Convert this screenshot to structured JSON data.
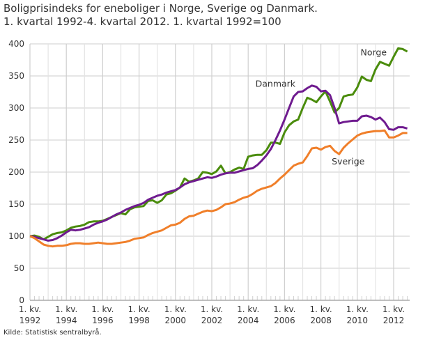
{
  "chart_data": {
    "type": "line",
    "title": "Boligprisindeks for eneboliger i Norge, Sverige og Danmark.",
    "subtitle": "1. kvartal 1992-4. kvartal 2012. 1. kvartal 1992=100",
    "source": "Kilde: Statistisk sentralbyrå.",
    "xlabel": "",
    "ylabel": "",
    "x_start": "1992 Q1",
    "x_end": "2012 Q4",
    "x_frequency": "quarterly",
    "ylim": [
      0,
      400
    ],
    "yticks": [
      0,
      50,
      100,
      150,
      200,
      250,
      300,
      350,
      400
    ],
    "xtick_labels": [
      {
        "line1": "1. kv.",
        "line2": "1992",
        "year": 1992
      },
      {
        "line1": "1. kv.",
        "line2": "1994",
        "year": 1994
      },
      {
        "line1": "1. kv.",
        "line2": "1996",
        "year": 1996
      },
      {
        "line1": "1. kv.",
        "line2": "1998",
        "year": 1998
      },
      {
        "line1": "1. kv.",
        "line2": "2000",
        "year": 2000
      },
      {
        "line1": "1. kv.",
        "line2": "2002",
        "year": 2002
      },
      {
        "line1": "1. kv.",
        "line2": "2004",
        "year": 2004
      },
      {
        "line1": "1. kv.",
        "line2": "2006",
        "year": 2006
      },
      {
        "line1": "1. kv.",
        "line2": "2008",
        "year": 2008
      },
      {
        "line1": "1. kv.",
        "line2": "2010",
        "year": 2010
      },
      {
        "line1": "1. kv.",
        "line2": "2012",
        "year": 2012
      }
    ],
    "grid": true,
    "legend": "inline labels",
    "series": [
      {
        "name": "Norge",
        "color": "#4a8c0c",
        "label_at": {
          "x": 2010.9,
          "y": 382
        },
        "values": [
          100,
          101,
          99,
          95,
          99,
          103,
          105,
          106,
          109,
          113,
          115,
          116,
          118,
          122,
          123,
          123,
          124,
          127,
          130,
          133,
          136,
          134,
          142,
          145,
          146,
          147,
          155,
          156,
          152,
          156,
          165,
          167,
          171,
          176,
          190,
          185,
          187,
          190,
          200,
          199,
          197,
          201,
          210,
          198,
          200,
          204,
          207,
          205,
          224,
          226,
          227,
          227,
          234,
          246,
          246,
          244,
          262,
          273,
          279,
          282,
          300,
          316,
          313,
          309,
          318,
          326,
          310,
          293,
          300,
          318,
          320,
          321,
          332,
          349,
          344,
          342,
          360,
          372,
          369,
          366,
          380,
          393,
          392,
          388
        ]
      },
      {
        "name": "Danmark",
        "color": "#6f1b8f",
        "label_at": {
          "x": 2005.5,
          "y": 333
        },
        "values": [
          100,
          99,
          97,
          95,
          93,
          94,
          97,
          101,
          106,
          110,
          109,
          110,
          112,
          114,
          118,
          121,
          123,
          126,
          130,
          134,
          137,
          141,
          144,
          147,
          149,
          152,
          157,
          160,
          163,
          165,
          168,
          170,
          172,
          176,
          181,
          184,
          186,
          188,
          190,
          192,
          191,
          193,
          196,
          198,
          199,
          199,
          201,
          203,
          205,
          206,
          211,
          218,
          226,
          236,
          250,
          265,
          282,
          300,
          318,
          325,
          326,
          331,
          335,
          333,
          326,
          327,
          320,
          300,
          276,
          278,
          279,
          280,
          280,
          287,
          288,
          286,
          282,
          285,
          278,
          267,
          266,
          270,
          270,
          268
        ]
      },
      {
        "name": "Sverige",
        "color": "#f07f2a",
        "label_at": {
          "x": 2009.5,
          "y": 212
        },
        "values": [
          100,
          97,
          92,
          87,
          85,
          84,
          85,
          85,
          86,
          88,
          89,
          89,
          88,
          88,
          89,
          90,
          89,
          88,
          88,
          89,
          90,
          91,
          93,
          96,
          97,
          98,
          102,
          105,
          107,
          109,
          113,
          117,
          118,
          121,
          127,
          131,
          132,
          135,
          138,
          140,
          139,
          141,
          145,
          150,
          151,
          153,
          157,
          160,
          162,
          166,
          171,
          174,
          176,
          178,
          183,
          190,
          196,
          203,
          210,
          213,
          215,
          225,
          237,
          238,
          235,
          239,
          241,
          233,
          228,
          238,
          245,
          251,
          257,
          260,
          262,
          263,
          264,
          264,
          265,
          254,
          254,
          257,
          261,
          261
        ]
      }
    ]
  }
}
